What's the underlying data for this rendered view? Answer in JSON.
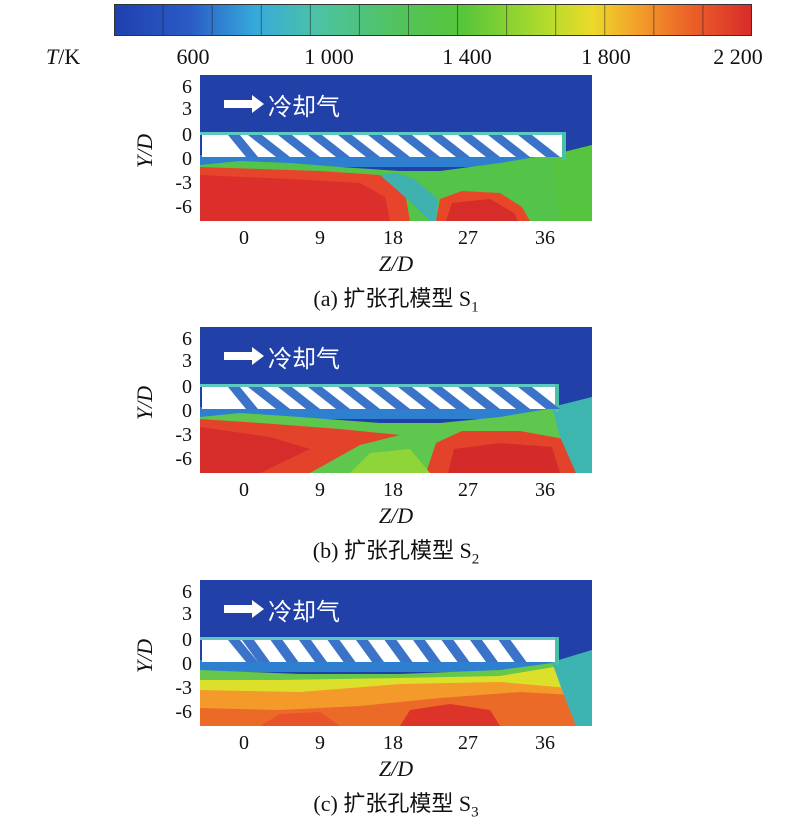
{
  "colorbar": {
    "label_T": "T",
    "label_unit": "/K",
    "ticks": [
      "600",
      "1 000",
      "1 400",
      "1 800",
      "2 200"
    ],
    "colors": [
      "#1f3fae",
      "#2a62c8",
      "#33a6d8",
      "#49c1a8",
      "#57c46b",
      "#4fc23c",
      "#6fcf2d",
      "#a5d82a",
      "#dfe12b",
      "#f4b42a",
      "#f07a28",
      "#e84628",
      "#d82b2a"
    ]
  },
  "axes": {
    "y_ticks": [
      "6",
      "3",
      "0",
      "0",
      "-3",
      "-6"
    ],
    "x_ticks": [
      "0",
      "9",
      "18",
      "27",
      "36"
    ],
    "x_label_a": "Z",
    "x_label_b": "/D",
    "y_label": "Y/D"
  },
  "flow_label": "冷却气",
  "panels": [
    {
      "caption_prefix": "(a) 扩张孔模型 S",
      "caption_sub": "1"
    },
    {
      "caption_prefix": "(b) 扩张孔模型 S",
      "caption_sub": "2"
    },
    {
      "caption_prefix": "(c) 扩张孔模型 S",
      "caption_sub": "3"
    }
  ]
}
